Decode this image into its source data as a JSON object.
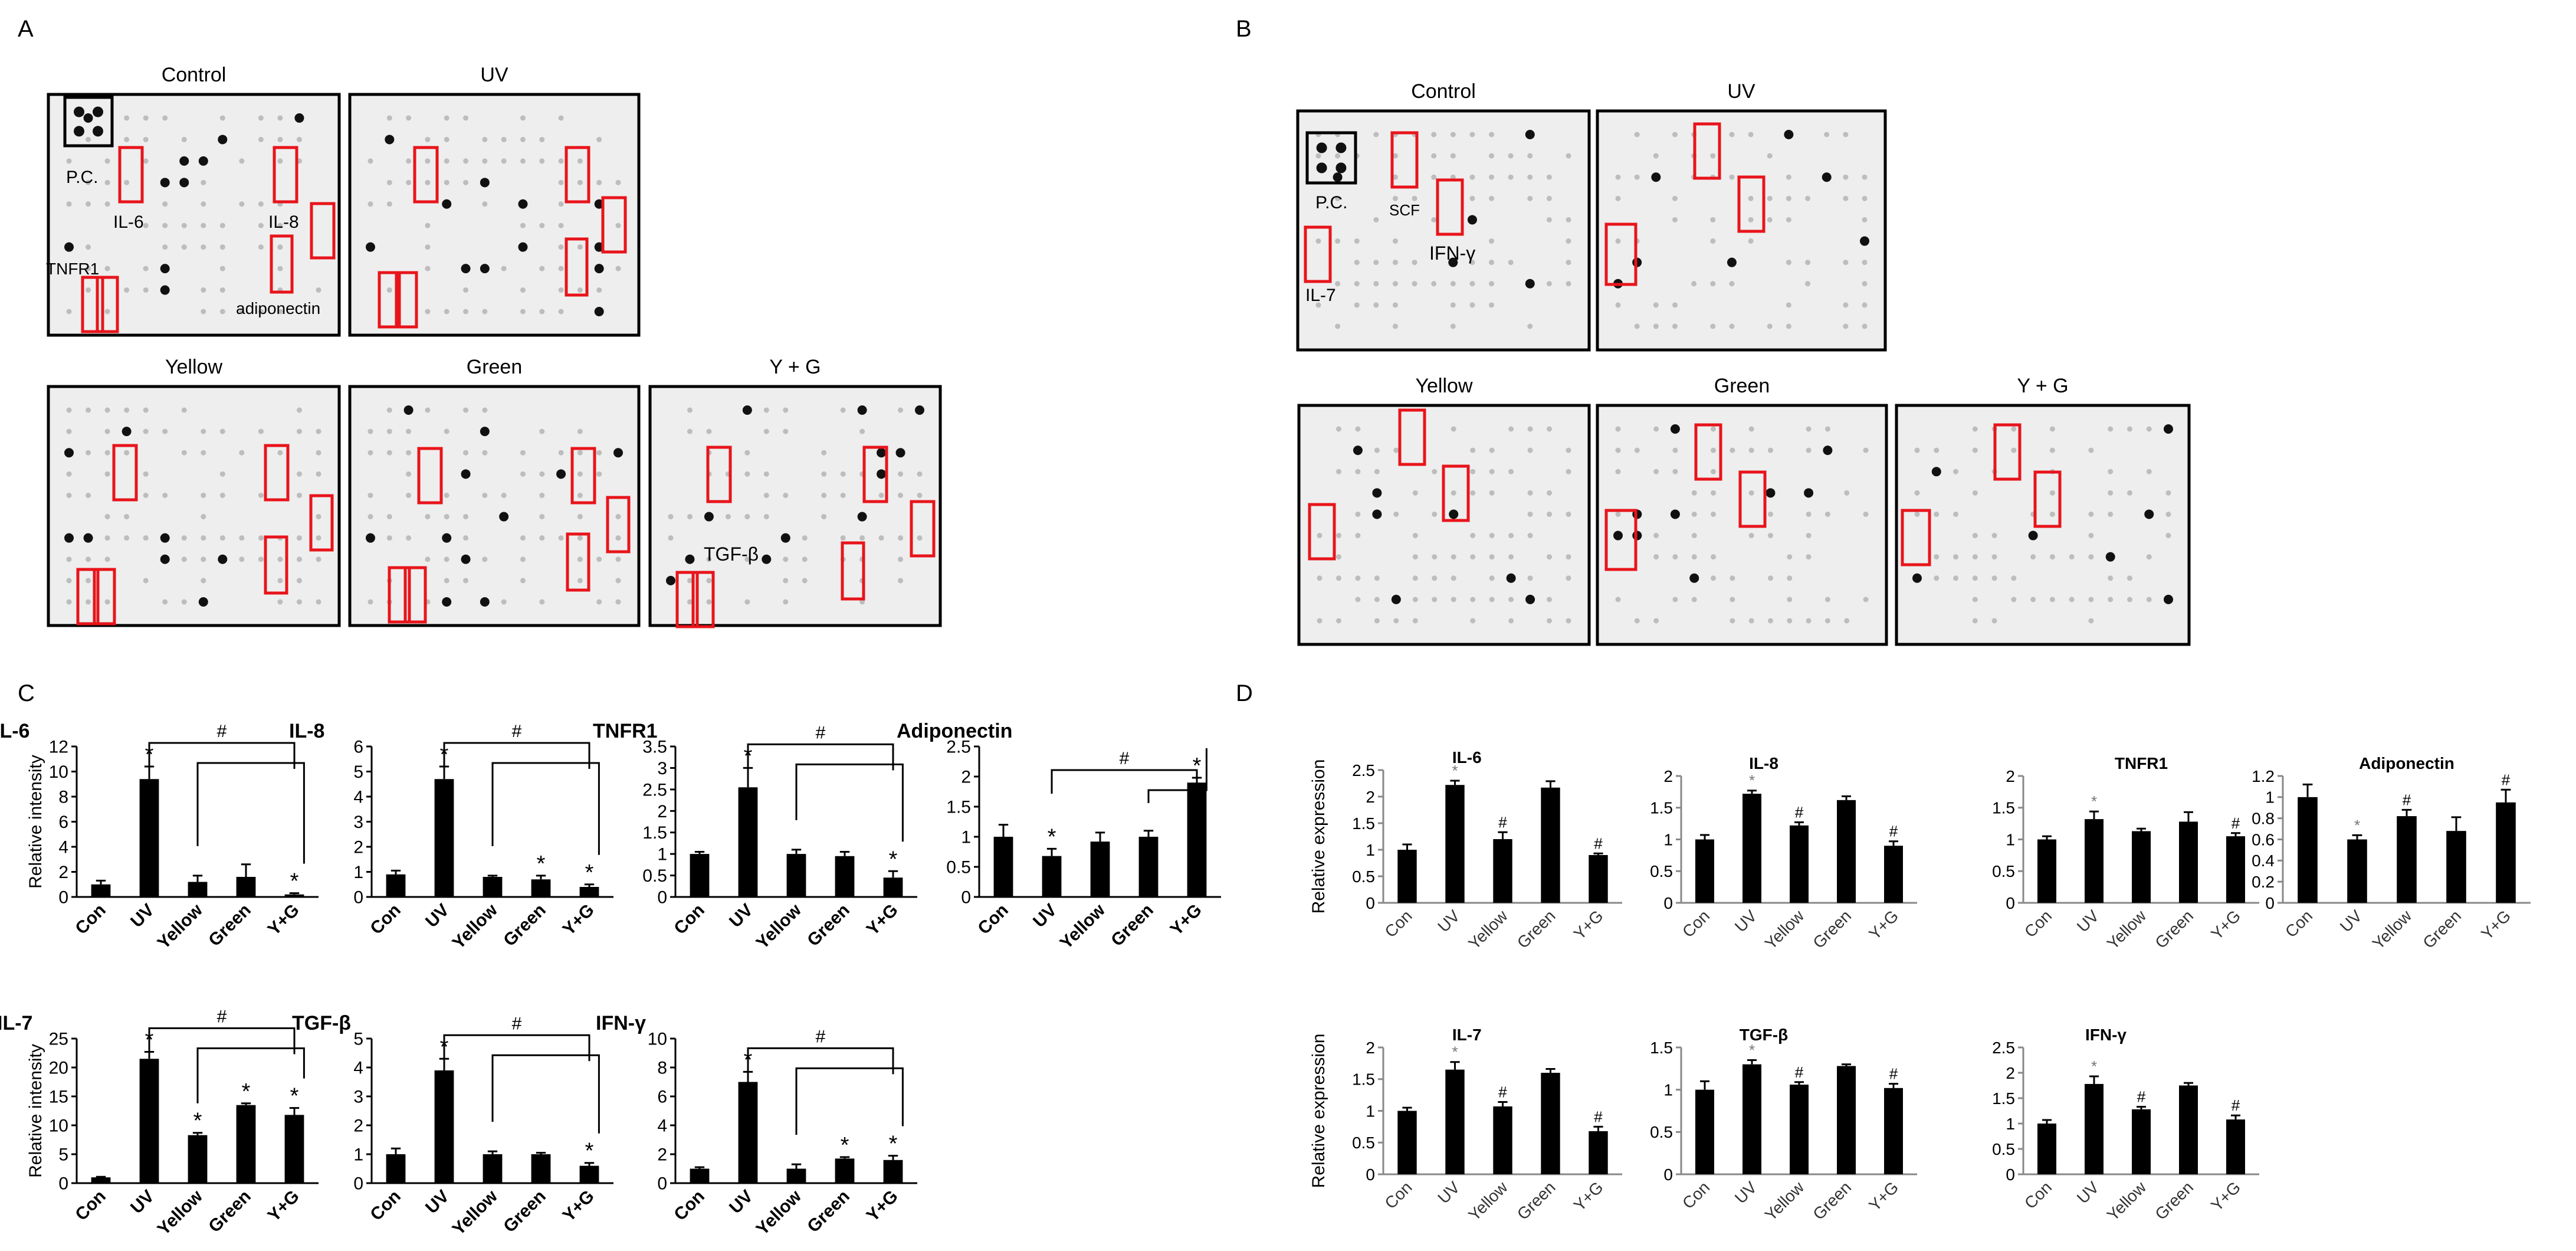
{
  "panel_letters": [
    "A",
    "B",
    "C",
    "D"
  ],
  "blots": {
    "A": [
      {
        "title": "Control",
        "labels": [
          "P.C.",
          "IL-6",
          "IL-8",
          "TNFR1",
          "adiponectin"
        ]
      },
      {
        "title": "UV",
        "labels": []
      },
      {
        "title": "Yellow",
        "labels": []
      },
      {
        "title": "Green",
        "labels": []
      },
      {
        "title": "Y + G",
        "labels": [
          "TGF-β"
        ]
      }
    ],
    "B": [
      {
        "title": "Control",
        "labels": [
          "P.C.",
          "SCF",
          "IFN-γ",
          "IL-7"
        ]
      },
      {
        "title": "UV",
        "labels": []
      },
      {
        "title": "Yellow",
        "labels": []
      },
      {
        "title": "Green",
        "labels": []
      },
      {
        "title": "Y + G",
        "labels": []
      }
    ]
  },
  "colors": {
    "bar": "#000000",
    "box": "#e8141b",
    "pc_box": "#000000",
    "blot_bg": "#eeeeee"
  },
  "chart_data": [
    {
      "panel": "C",
      "type": "bar",
      "title": "IL-6",
      "ylabel": "Relative intensity",
      "categories": [
        "Con",
        "UV",
        "Yellow",
        "Green",
        "Y+G"
      ],
      "values": [
        1,
        9.4,
        1.2,
        1.6,
        0.2
      ],
      "errors": [
        0.3,
        1.0,
        0.5,
        1.0,
        0.1
      ],
      "ylim": [
        0,
        12
      ],
      "yticks": [
        0,
        2,
        4,
        6,
        8,
        10,
        12
      ],
      "marks": [
        "",
        "*",
        "",
        "",
        "*"
      ],
      "bracket": "#"
    },
    {
      "panel": "C",
      "type": "bar",
      "title": "IL-8",
      "ylabel": "",
      "categories": [
        "Con",
        "UV",
        "Yellow",
        "Green",
        "Y+G"
      ],
      "values": [
        0.9,
        4.7,
        0.8,
        0.7,
        0.4
      ],
      "errors": [
        0.15,
        0.5,
        0.05,
        0.15,
        0.1
      ],
      "ylim": [
        0,
        6
      ],
      "yticks": [
        0,
        1,
        2,
        3,
        4,
        5,
        6
      ],
      "marks": [
        "",
        "*",
        "",
        "*",
        "*"
      ],
      "bracket": "#"
    },
    {
      "panel": "C",
      "type": "bar",
      "title": "TNFR1",
      "ylabel": "",
      "categories": [
        "Con",
        "UV",
        "Yellow",
        "Green",
        "Y+G"
      ],
      "values": [
        1,
        2.55,
        1,
        0.95,
        0.45
      ],
      "errors": [
        0.05,
        0.45,
        0.1,
        0.1,
        0.15
      ],
      "ylim": [
        0,
        3.5
      ],
      "yticks": [
        0,
        0.5,
        1,
        1.5,
        2,
        2.5,
        3,
        3.5
      ],
      "marks": [
        "",
        "*",
        "",
        "",
        "*"
      ],
      "bracket": "#"
    },
    {
      "panel": "C",
      "type": "bar",
      "title": "Adiponectin",
      "ylabel": "",
      "categories": [
        "Con",
        "UV",
        "Yellow",
        "Green",
        "Y+G"
      ],
      "values": [
        1,
        0.68,
        0.92,
        1,
        1.9
      ],
      "errors": [
        0.2,
        0.12,
        0.15,
        0.1,
        0.08
      ],
      "ylim": [
        0,
        2.5
      ],
      "yticks": [
        0,
        0.5,
        1,
        1.5,
        2,
        2.5
      ],
      "marks": [
        "",
        "*",
        "",
        "",
        "*"
      ],
      "bracket": "#"
    },
    {
      "panel": "C",
      "type": "bar",
      "title": "IL-7",
      "ylabel": "Relative intensity",
      "categories": [
        "Con",
        "UV",
        "Yellow",
        "Green",
        "Y+G"
      ],
      "values": [
        1,
        21.5,
        8.3,
        13.5,
        11.8
      ],
      "errors": [
        0.1,
        1.2,
        0.4,
        0.3,
        1.2
      ],
      "ylim": [
        0,
        25
      ],
      "yticks": [
        0,
        5,
        10,
        15,
        20,
        25
      ],
      "marks": [
        "",
        "*",
        "*",
        "*",
        "*"
      ],
      "bracket": "#"
    },
    {
      "panel": "C",
      "type": "bar",
      "title": "TGF-β",
      "ylabel": "",
      "categories": [
        "Con",
        "UV",
        "Yellow",
        "Green",
        "Y+G"
      ],
      "values": [
        1,
        3.9,
        1,
        1,
        0.6
      ],
      "errors": [
        0.2,
        0.4,
        0.1,
        0.05,
        0.1
      ],
      "ylim": [
        0,
        5
      ],
      "yticks": [
        0,
        1,
        2,
        3,
        4,
        5
      ],
      "marks": [
        "",
        "*",
        "",
        "",
        "*"
      ],
      "bracket": "#"
    },
    {
      "panel": "C",
      "type": "bar",
      "title": "IFN-γ",
      "ylabel": "",
      "categories": [
        "Con",
        "UV",
        "Yellow",
        "Green",
        "Y+G"
      ],
      "values": [
        1,
        7,
        1,
        1.7,
        1.6
      ],
      "errors": [
        0.1,
        0.7,
        0.3,
        0.1,
        0.3
      ],
      "ylim": [
        0,
        10
      ],
      "yticks": [
        0,
        2,
        4,
        6,
        8,
        10
      ],
      "marks": [
        "",
        "*",
        "",
        "*",
        "*"
      ],
      "bracket": "#"
    },
    {
      "panel": "D",
      "type": "bar",
      "title": "IL-6",
      "ylabel": "Relative expression",
      "categories": [
        "Con",
        "UV",
        "Yellow",
        "Green",
        "Y+G"
      ],
      "values": [
        1,
        2.22,
        1.2,
        2.17,
        0.9
      ],
      "errors": [
        0.1,
        0.08,
        0.13,
        0.12,
        0.03
      ],
      "ylim": [
        0,
        2.5
      ],
      "yticks": [
        0,
        0.5,
        1,
        1.5,
        2,
        2.5
      ],
      "marks": [
        "",
        "*",
        "#",
        "",
        "#"
      ]
    },
    {
      "panel": "D",
      "type": "bar",
      "title": "IL-8",
      "ylabel": "",
      "categories": [
        "Con",
        "UV",
        "Yellow",
        "Green",
        "Y+G"
      ],
      "values": [
        1,
        1.72,
        1.22,
        1.62,
        0.9
      ],
      "errors": [
        0.07,
        0.05,
        0.05,
        0.06,
        0.07
      ],
      "ylim": [
        0,
        2
      ],
      "yticks": [
        0,
        0.5,
        1,
        1.5,
        2
      ],
      "marks": [
        "",
        "*",
        "#",
        "",
        "#"
      ]
    },
    {
      "panel": "D",
      "type": "bar",
      "title": "TNFR1",
      "ylabel": "",
      "categories": [
        "Con",
        "UV",
        "Yellow",
        "Green",
        "Y+G"
      ],
      "values": [
        1,
        1.32,
        1.13,
        1.28,
        1.05
      ],
      "errors": [
        0.05,
        0.12,
        0.04,
        0.15,
        0.05
      ],
      "ylim": [
        0,
        2
      ],
      "yticks": [
        0,
        0.5,
        1,
        1.5,
        2
      ],
      "marks": [
        "",
        "*",
        "",
        "",
        "#"
      ]
    },
    {
      "panel": "D",
      "type": "bar",
      "title": "Adiponectin",
      "ylabel": "",
      "categories": [
        "Con",
        "UV",
        "Yellow",
        "Green",
        "Y+G"
      ],
      "values": [
        1,
        0.6,
        0.82,
        0.68,
        0.95
      ],
      "errors": [
        0.12,
        0.04,
        0.06,
        0.13,
        0.12
      ],
      "ylim": [
        0,
        1.2
      ],
      "yticks": [
        0,
        0.2,
        0.4,
        0.6,
        0.8,
        1,
        1.2
      ],
      "marks": [
        "",
        "*",
        "#",
        "",
        "#"
      ]
    },
    {
      "panel": "D",
      "type": "bar",
      "title": "IL-7",
      "ylabel": "Relative expression",
      "categories": [
        "Con",
        "UV",
        "Yellow",
        "Green",
        "Y+G"
      ],
      "values": [
        1,
        1.65,
        1.07,
        1.6,
        0.68
      ],
      "errors": [
        0.05,
        0.12,
        0.07,
        0.06,
        0.07
      ],
      "ylim": [
        0,
        2
      ],
      "yticks": [
        0,
        0.5,
        1,
        1.5,
        2
      ],
      "marks": [
        "",
        "*",
        "#",
        "",
        "#"
      ]
    },
    {
      "panel": "D",
      "type": "bar",
      "title": "TGF-β",
      "ylabel": "",
      "categories": [
        "Con",
        "UV",
        "Yellow",
        "Green",
        "Y+G"
      ],
      "values": [
        1,
        1.3,
        1.06,
        1.28,
        1.02
      ],
      "errors": [
        0.1,
        0.05,
        0.03,
        0.02,
        0.05
      ],
      "ylim": [
        0,
        1.5
      ],
      "yticks": [
        0,
        0.5,
        1,
        1.5
      ],
      "marks": [
        "",
        "*",
        "#",
        "",
        "#"
      ]
    },
    {
      "panel": "D",
      "type": "bar",
      "title": "IFN-γ",
      "ylabel": "",
      "categories": [
        "Con",
        "UV",
        "Yellow",
        "Green",
        "Y+G"
      ],
      "values": [
        1,
        1.78,
        1.28,
        1.75,
        1.08
      ],
      "errors": [
        0.07,
        0.15,
        0.05,
        0.05,
        0.08
      ],
      "ylim": [
        0,
        2.5
      ],
      "yticks": [
        0,
        0.5,
        1,
        1.5,
        2,
        2.5
      ],
      "marks": [
        "",
        "*",
        "#",
        "",
        "#"
      ]
    }
  ]
}
